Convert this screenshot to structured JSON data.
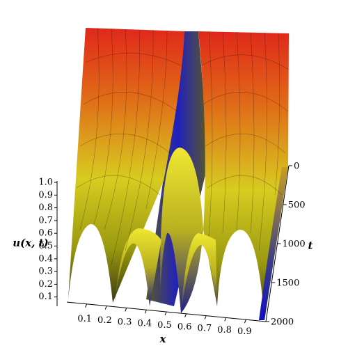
{
  "chart_data": {
    "type": "surface3d",
    "x_label": "x",
    "y_label": "t",
    "z_label": "u(x, t)",
    "xlim": [
      0,
      1
    ],
    "xticks": [
      0.1,
      0.2,
      0.3,
      0.4,
      0.5,
      0.6,
      0.7,
      0.8,
      0.9
    ],
    "ylim": [
      0,
      2000
    ],
    "yticks": [
      0,
      500,
      1000,
      1500,
      2000
    ],
    "zlim": [
      0,
      1
    ],
    "zticks": [
      0.1,
      0.2,
      0.3,
      0.4,
      0.5,
      0.6,
      0.7,
      0.8,
      0.9,
      {
        "value": 1,
        "label": "1.0"
      }
    ]
  }
}
